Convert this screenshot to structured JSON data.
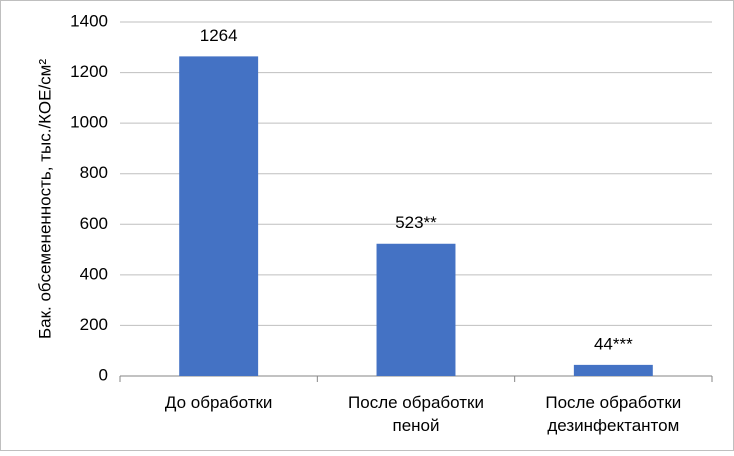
{
  "chart_data": {
    "type": "bar",
    "y_label": "Бак. обсемененность, тыс./КОЕ/см²",
    "categories": [
      "До обработки",
      "После обработки\nпеной",
      "После обработки\nдезинфектантом"
    ],
    "values": [
      1264,
      523,
      44
    ],
    "value_labels": [
      "1264",
      "523**",
      "44***"
    ],
    "color": "#4472c4",
    "ylim": [
      0,
      1400
    ],
    "yticks": [
      0,
      200,
      400,
      600,
      800,
      1000,
      1200,
      1400
    ],
    "grid": true
  }
}
